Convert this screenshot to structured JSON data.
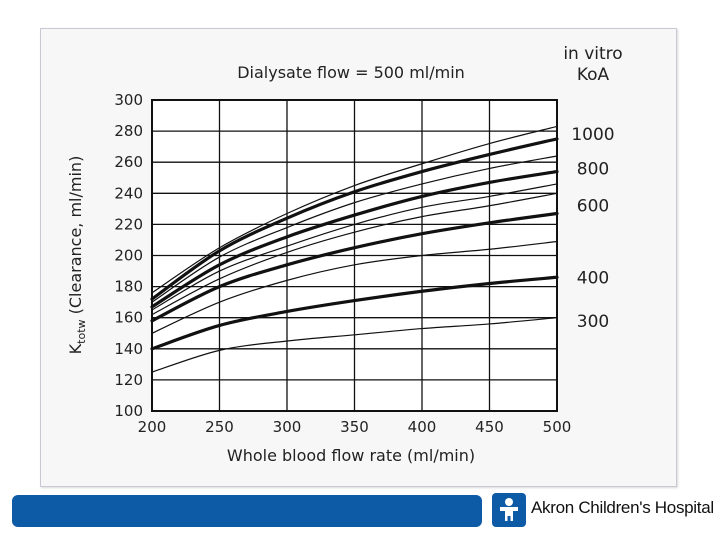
{
  "chart_data": {
    "type": "line",
    "title": "Dialysate flow = 500 ml/min",
    "xlabel": "Whole blood flow rate (ml/min)",
    "ylabel_main": "K",
    "ylabel_sub": "totw",
    "ylabel_rest": "(Clearance, ml/min)",
    "legend_title": [
      "in vitro",
      "KoA"
    ],
    "legend_placement": "right",
    "grid": true,
    "xlim": [
      200,
      500
    ],
    "ylim": [
      100,
      300
    ],
    "x_ticks": [
      200,
      250,
      300,
      350,
      400,
      450,
      500
    ],
    "y_ticks": [
      100,
      120,
      140,
      160,
      180,
      200,
      220,
      240,
      260,
      280,
      300
    ],
    "x": [
      200,
      250,
      300,
      350,
      400,
      450,
      500
    ],
    "series": [
      {
        "name": "1000",
        "bold": true,
        "values": [
          172,
          203,
          224,
          241,
          254,
          265,
          275
        ]
      },
      {
        "name": "800",
        "bold": true,
        "values": [
          167,
          194,
          212,
          226,
          238,
          247,
          254
        ]
      },
      {
        "name": "600",
        "bold": true,
        "values": [
          158,
          180,
          194,
          205,
          214,
          221,
          227
        ]
      },
      {
        "name": "400",
        "bold": true,
        "values": [
          140,
          155,
          164,
          171,
          177,
          182,
          186
        ]
      },
      {
        "name": "300",
        "bold": false,
        "values": [
          125,
          139,
          145,
          149,
          153,
          156,
          160
        ]
      },
      {
        "name": "",
        "bold": false,
        "values": [
          176,
          205,
          227,
          245,
          259,
          272,
          283
        ]
      },
      {
        "name": "",
        "bold": false,
        "values": [
          170,
          199,
          218,
          234,
          246,
          256,
          264
        ]
      },
      {
        "name": "",
        "bold": false,
        "values": [
          165,
          190,
          206,
          220,
          231,
          238,
          246
        ]
      },
      {
        "name": "",
        "bold": false,
        "values": [
          162,
          185,
          202,
          215,
          225,
          232,
          240
        ]
      },
      {
        "name": "",
        "bold": false,
        "values": [
          150,
          170,
          184,
          194,
          200,
          204,
          209
        ]
      }
    ],
    "labeled_series_order": [
      "1000",
      "800",
      "600",
      "400",
      "300"
    ]
  },
  "footer": {
    "brand": "Akron Children's Hospital",
    "bar_color": "#0d5aa7"
  }
}
